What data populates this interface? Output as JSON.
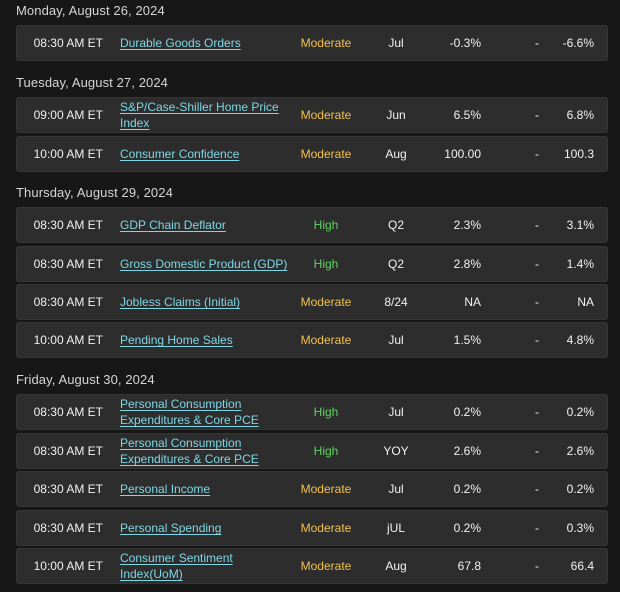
{
  "days": [
    {
      "header": "Monday, August 26, 2024",
      "events": [
        {
          "time": "08:30 AM ET",
          "name": "Durable Goods Orders",
          "importance": "Moderate",
          "period": "Jul",
          "actual": "-0.3%",
          "forecast": "-",
          "previous": "-6.6%"
        }
      ]
    },
    {
      "header": "Tuesday, August 27, 2024",
      "events": [
        {
          "time": "09:00 AM ET",
          "name": "S&P/Case-Shiller Home Price Index",
          "importance": "Moderate",
          "period": "Jun",
          "actual": "6.5%",
          "forecast": "-",
          "previous": "6.8%"
        },
        {
          "time": "10:00 AM ET",
          "name": "Consumer Confidence",
          "importance": "Moderate",
          "period": "Aug",
          "actual": "100.00",
          "forecast": "-",
          "previous": "100.3"
        }
      ]
    },
    {
      "header": "Thursday, August 29, 2024",
      "events": [
        {
          "time": "08:30 AM ET",
          "name": "GDP Chain Deflator",
          "importance": "High",
          "period": "Q2",
          "actual": "2.3%",
          "forecast": "-",
          "previous": "3.1%"
        },
        {
          "time": "08:30 AM ET",
          "name": "Gross Domestic Product (GDP)",
          "importance": "High",
          "period": "Q2",
          "actual": "2.8%",
          "forecast": "-",
          "previous": "1.4%"
        },
        {
          "time": "08:30 AM ET",
          "name": "Jobless Claims (Initial)",
          "importance": "Moderate",
          "period": "8/24",
          "actual": "NA",
          "forecast": "-",
          "previous": "NA"
        },
        {
          "time": "10:00 AM ET",
          "name": "Pending Home Sales",
          "importance": "Moderate",
          "period": "Jul",
          "actual": "1.5%",
          "forecast": "-",
          "previous": "4.8%"
        }
      ]
    },
    {
      "header": "Friday, August 30, 2024",
      "events": [
        {
          "time": "08:30 AM ET",
          "name": "Personal Consumption Expenditures & Core PCE",
          "importance": "High",
          "period": "Jul",
          "actual": "0.2%",
          "forecast": "-",
          "previous": "0.2%"
        },
        {
          "time": "08:30 AM ET",
          "name": "Personal Consumption Expenditures & Core PCE",
          "importance": "High",
          "period": "YOY",
          "actual": "2.6%",
          "forecast": "-",
          "previous": "2.6%"
        },
        {
          "time": "08:30 AM ET",
          "name": "Personal Income",
          "importance": "Moderate",
          "period": "Jul",
          "actual": "0.2%",
          "forecast": "-",
          "previous": "0.2%"
        },
        {
          "time": "08:30 AM ET",
          "name": "Personal Spending",
          "importance": "Moderate",
          "period": "jUL",
          "actual": "0.2%",
          "forecast": "-",
          "previous": "0.3%"
        },
        {
          "time": "10:00 AM ET",
          "name": "Consumer Sentiment Index(UoM)",
          "importance": "Moderate",
          "period": "Aug",
          "actual": "67.8",
          "forecast": "-",
          "previous": "66.4"
        }
      ]
    }
  ],
  "colors": {
    "background": "#171717",
    "row_background": "#2d2d2d",
    "link": "#7fd7e6",
    "importance_moderate": "#f2c14e",
    "importance_high": "#5fd35f"
  }
}
